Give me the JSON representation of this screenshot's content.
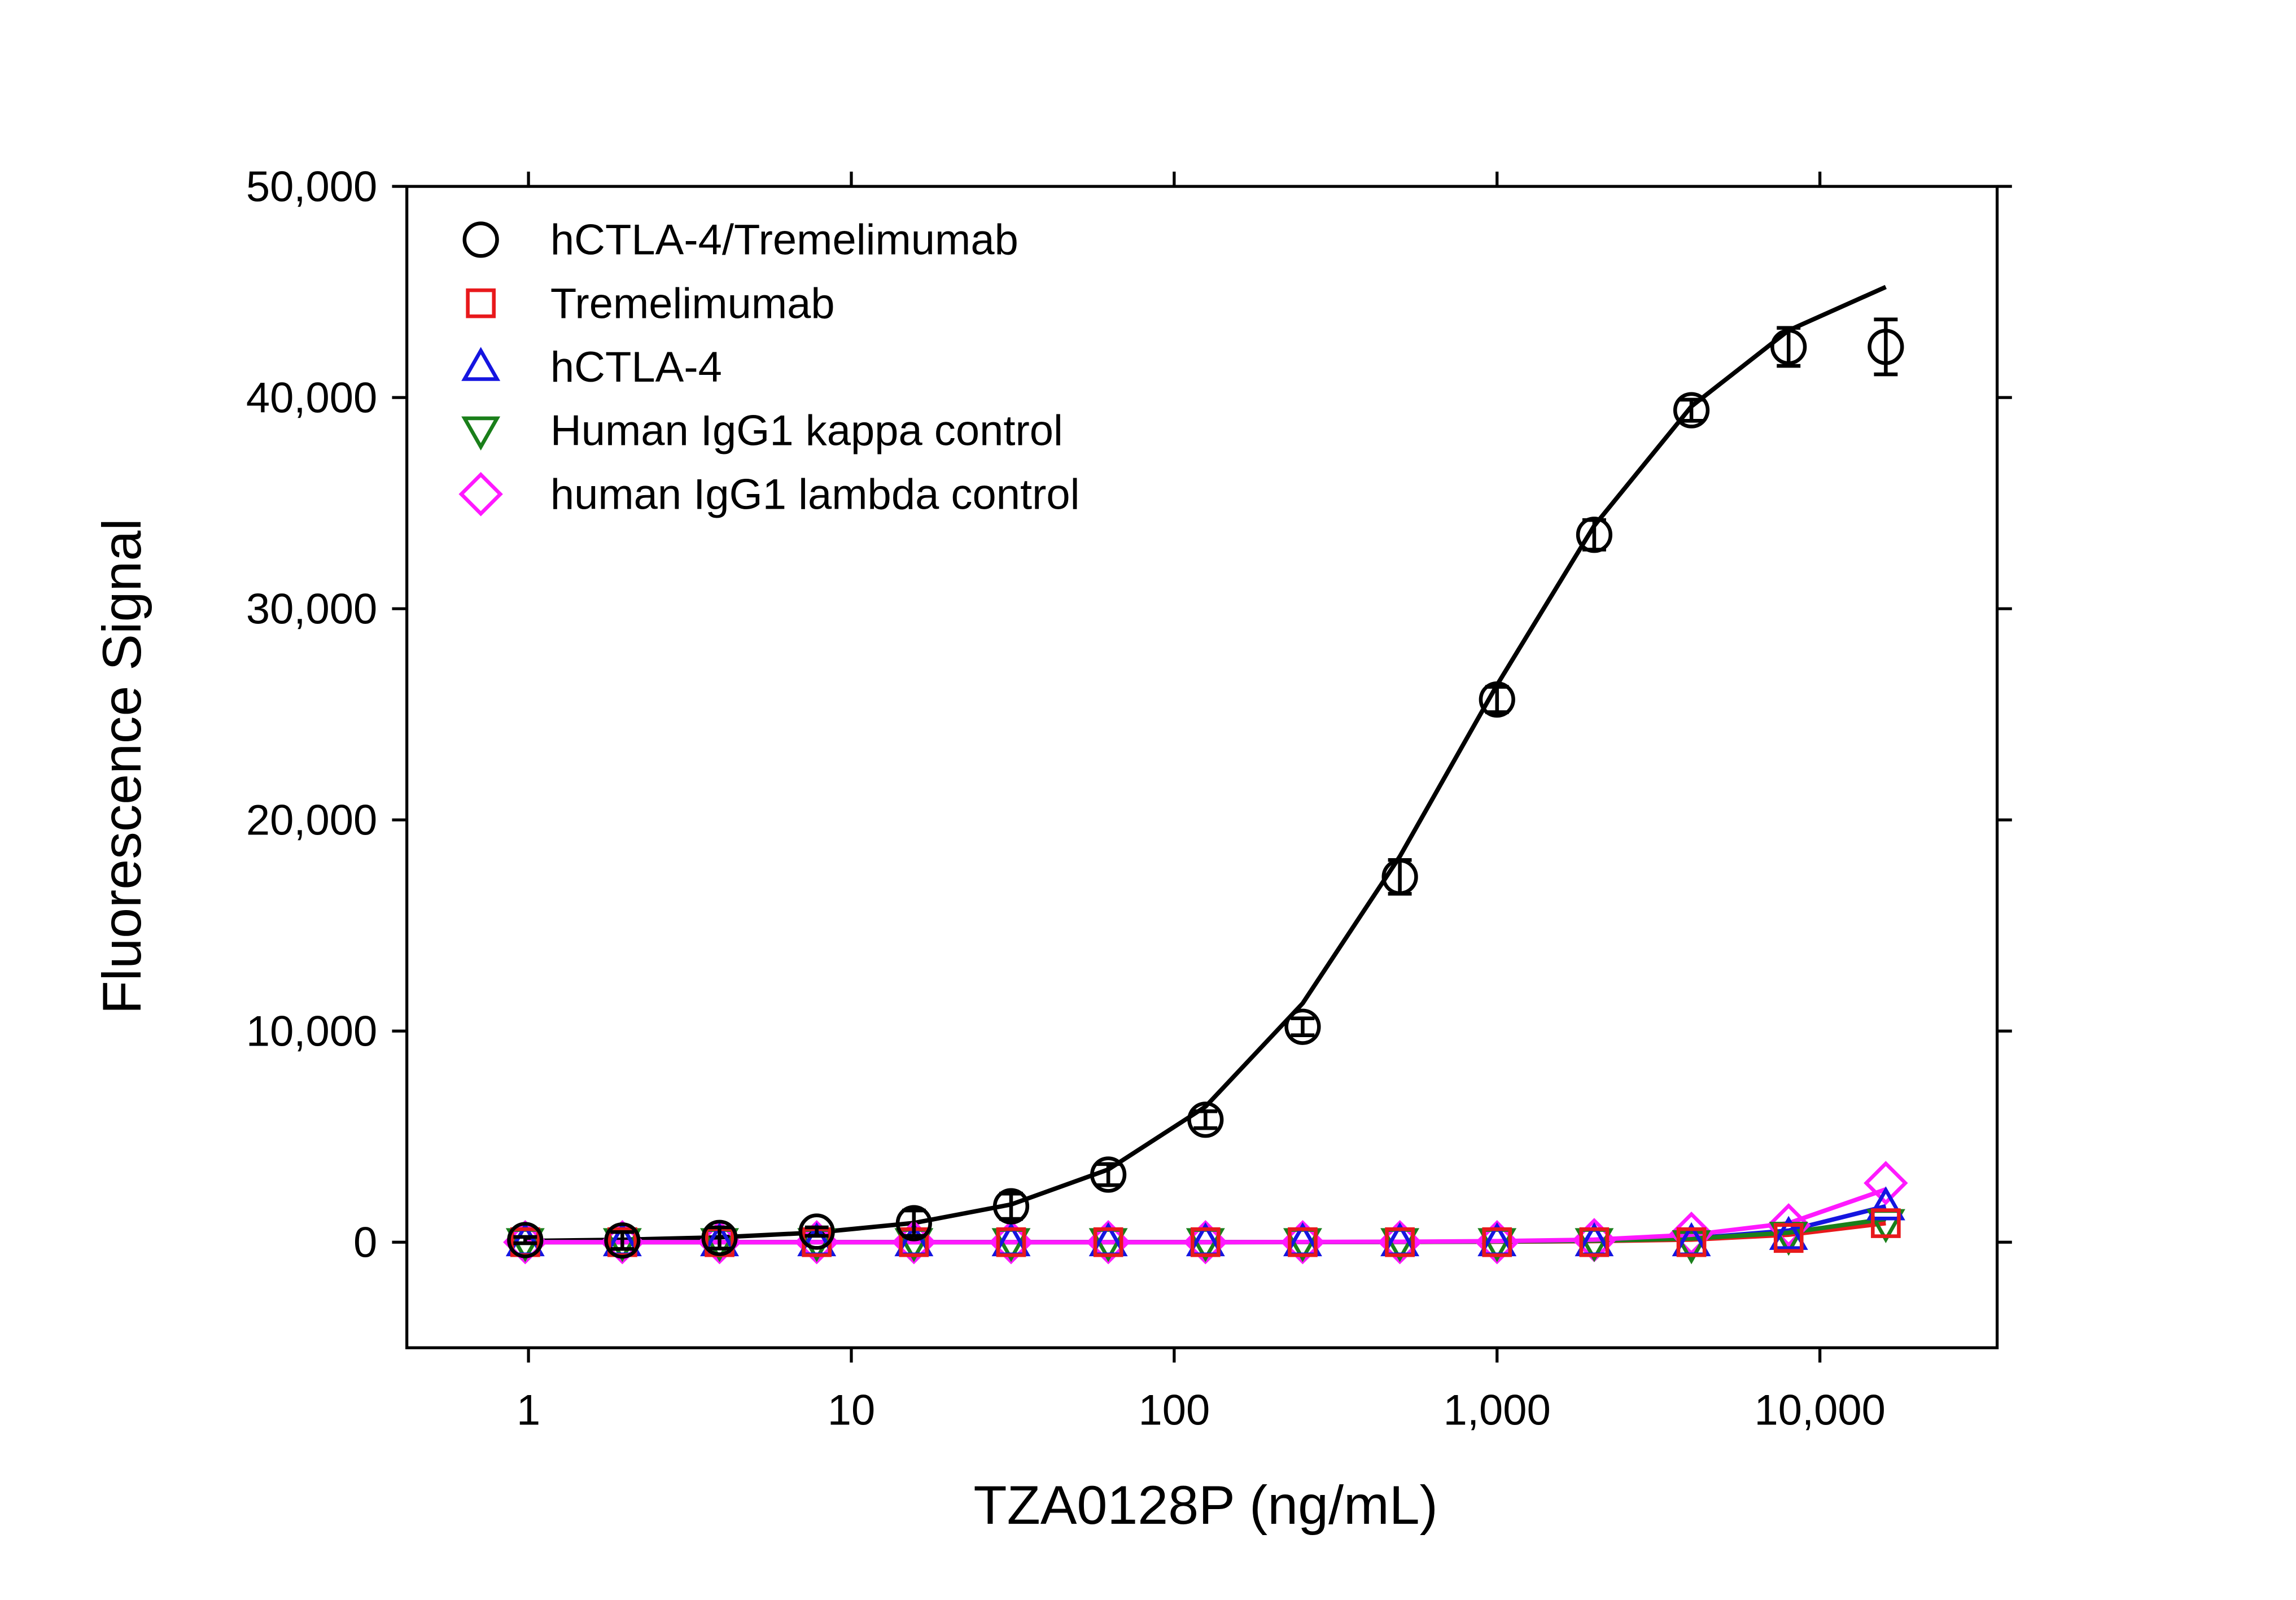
{
  "chart_data": {
    "type": "scatter",
    "x_label": "TZA0128P (ng/mL)",
    "y_label": "Fluorescence Signal",
    "x": [
      0.977,
      1.953,
      3.906,
      7.8125,
      15.625,
      31.25,
      62.5,
      125,
      250,
      500,
      1000,
      2000,
      4000,
      8000,
      16000
    ],
    "xscale": "log",
    "xlim": [
      0.42,
      35400
    ],
    "xticks": [
      1,
      10,
      100,
      {
        "value": 1000,
        "label": "1,000"
      },
      {
        "value": 10000,
        "label": "10,000"
      }
    ],
    "ylim": [
      -5000,
      50000
    ],
    "yticks": [
      0,
      {
        "value": 10000,
        "label": "10,000"
      },
      {
        "value": 20000,
        "label": "20,000"
      },
      {
        "value": 30000,
        "label": "30,000"
      },
      {
        "value": 40000,
        "label": "40,000"
      },
      {
        "value": 50000,
        "label": "50,000"
      }
    ],
    "grid": false,
    "legend": "upper left",
    "series": [
      {
        "name": "hCTLA-4/Tremelimumab",
        "color": "#000000",
        "marker": "circle",
        "values": [
          100,
          80,
          200,
          500,
          900,
          1700,
          3200,
          5800,
          10200,
          17300,
          25700,
          33500,
          39400,
          42400,
          42400
        ],
        "errors": [
          150,
          400,
          500,
          200,
          600,
          600,
          500,
          400,
          400,
          800,
          600,
          700,
          500,
          900,
          1300
        ],
        "fit": [
          58,
          116,
          231,
          459,
          910,
          1786,
          3442,
          6419,
          11310,
          18269,
          26389,
          33929,
          39583,
          43182,
          45238
        ]
      },
      {
        "name": "Tremelimumab",
        "color": "#e8191c",
        "marker": "square",
        "values": [
          0,
          0,
          0,
          0,
          0,
          0,
          0,
          0,
          0,
          0,
          0,
          0,
          0,
          200,
          900
        ],
        "fit": [
          0,
          0,
          0,
          0,
          0,
          0,
          0,
          0,
          5,
          10,
          20,
          50,
          120,
          350,
          900
        ]
      },
      {
        "name": "hCTLA-4",
        "color": "#1515e0",
        "marker": "triangle",
        "values": [
          0,
          0,
          0,
          0,
          0,
          0,
          0,
          0,
          0,
          0,
          0,
          0,
          0,
          300,
          1700
        ],
        "fit": [
          0,
          0,
          0,
          0,
          0,
          0,
          0,
          0,
          5,
          15,
          30,
          70,
          180,
          550,
          1700
        ]
      },
      {
        "name": "Human IgG1 kappa control",
        "color": "#1a7f1a",
        "marker": "triangle-down",
        "values": [
          0,
          0,
          0,
          0,
          0,
          0,
          0,
          0,
          0,
          0,
          0,
          0,
          -100,
          300,
          900
        ],
        "fit": [
          0,
          0,
          0,
          0,
          0,
          0,
          0,
          0,
          5,
          10,
          30,
          70,
          170,
          450,
          1100
        ]
      },
      {
        "name": "human IgG1 lambda control",
        "color": "#ff19ff",
        "marker": "diamond",
        "values": [
          0,
          0,
          0,
          0,
          0,
          0,
          0,
          0,
          0,
          0,
          0,
          100,
          400,
          800,
          2800
        ],
        "fit": [
          0,
          0,
          0,
          0,
          0,
          0,
          0,
          0,
          10,
          20,
          50,
          120,
          350,
          900,
          2500
        ]
      }
    ]
  }
}
